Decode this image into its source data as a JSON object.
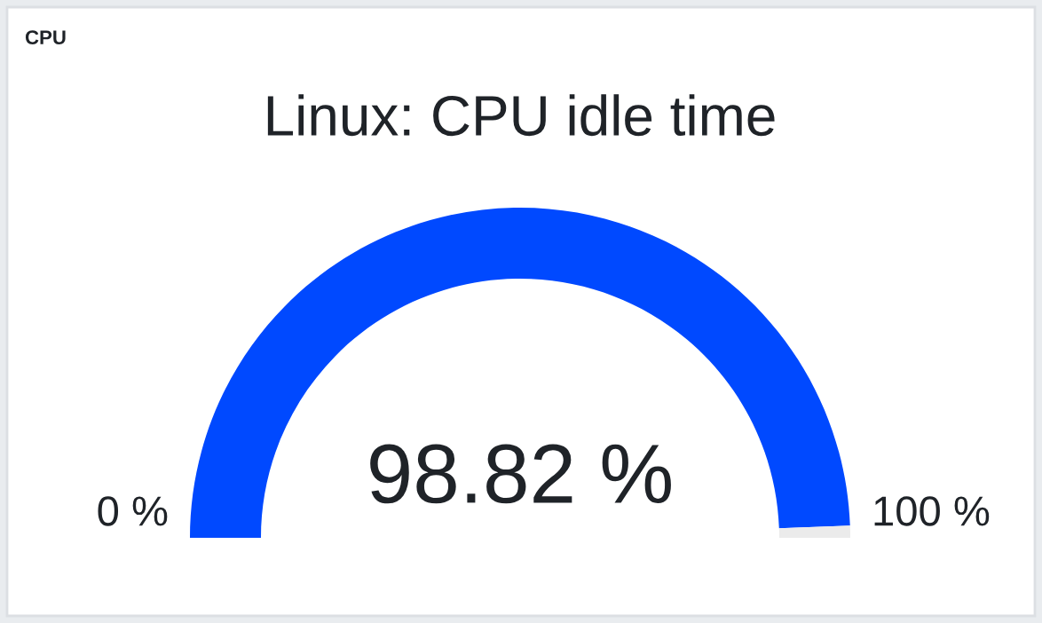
{
  "chart_data": {
    "type": "donut",
    "title": "CPU",
    "subtitle": "Linux: CPU idle time",
    "categories": [
      null,
      null
    ],
    "values": [
      98.82,
      1.18
    ],
    "colors": [
      "#0049ff",
      "#ebebeb"
    ],
    "value_labels": [
      "98.82 %",
      null
    ],
    "annotations": [
      "0 %",
      "100 %"
    ]
  }
}
